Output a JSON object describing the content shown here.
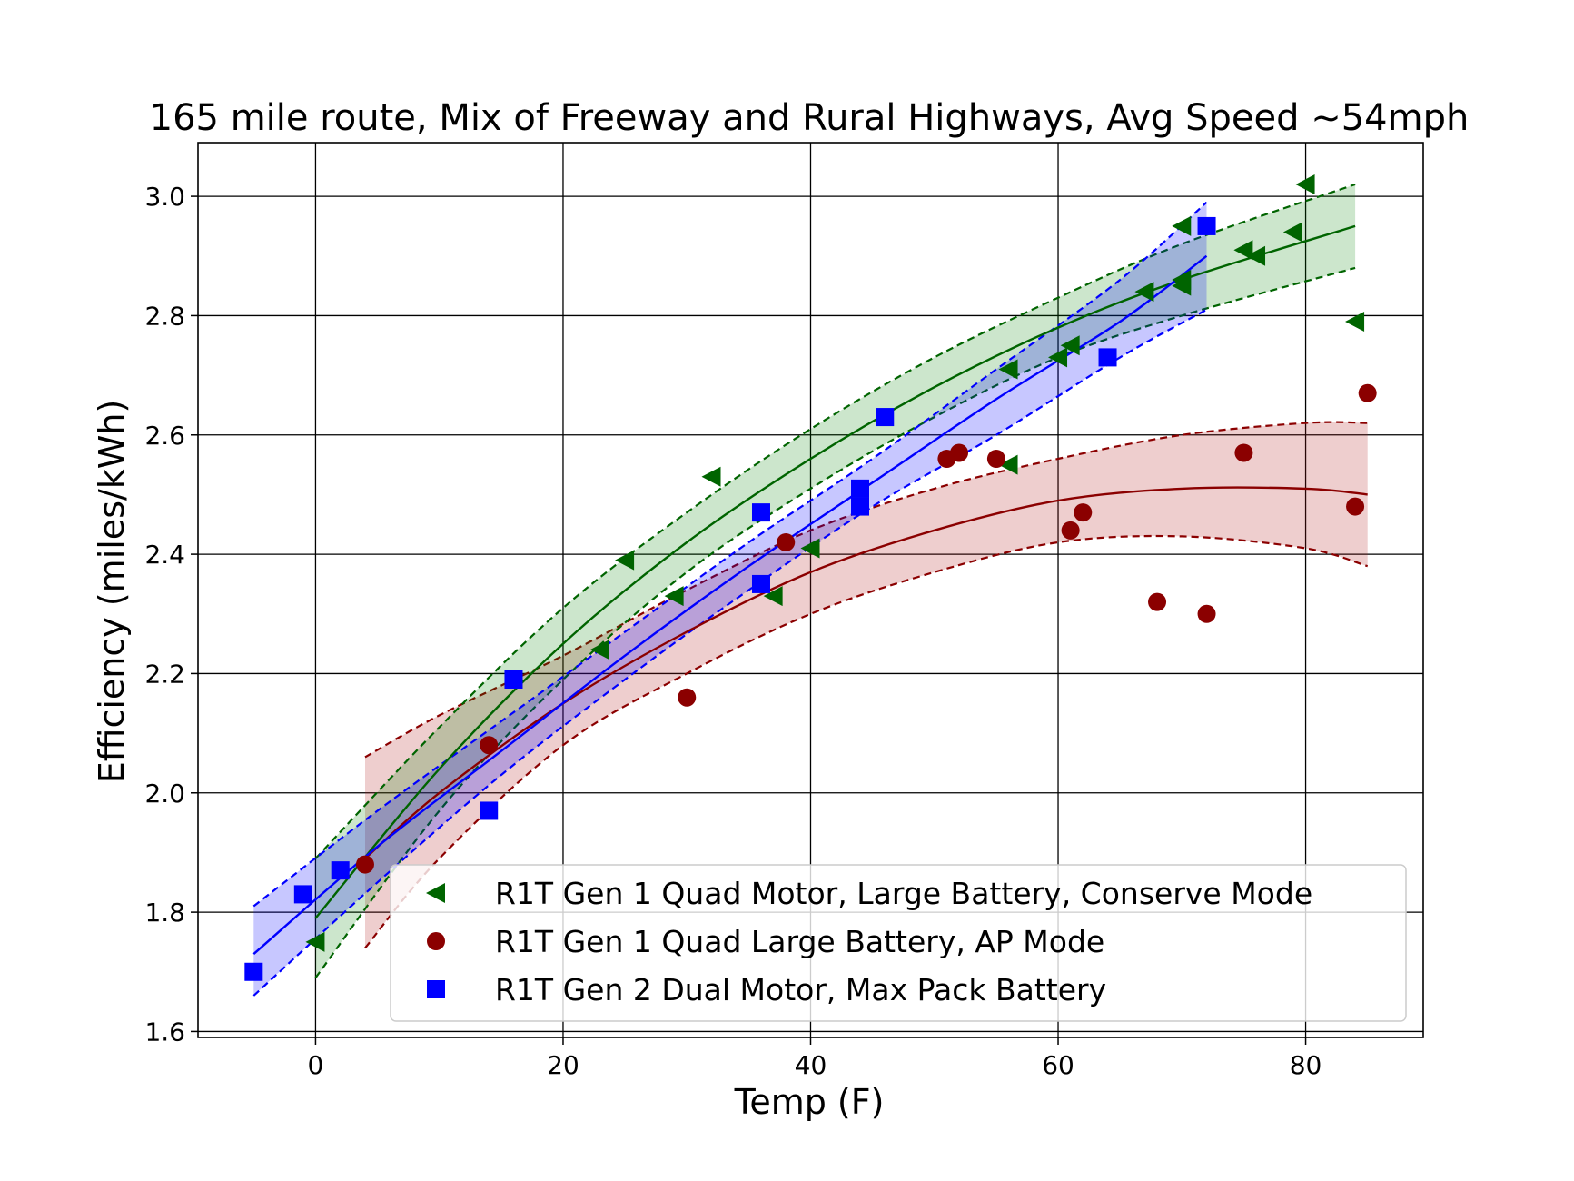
{
  "chart_data": {
    "type": "scatter",
    "title": "165 mile route, Mix of Freeway and Rural Highways, Avg Speed ~54mph",
    "xlabel": "Temp (F)",
    "ylabel": "Efficiency (miles/kWh)",
    "xlim": [
      -9.5,
      89.5
    ],
    "ylim": [
      1.59,
      3.09
    ],
    "xticks": [
      0,
      20,
      40,
      60,
      80
    ],
    "yticks": [
      1.6,
      1.8,
      2.0,
      2.2,
      2.4,
      2.6,
      2.8,
      3.0
    ],
    "xtick_labels": [
      "0",
      "20",
      "40",
      "60",
      "80"
    ],
    "ytick_labels": [
      "1.6",
      "1.8",
      "2.0",
      "2.2",
      "2.4",
      "2.6",
      "2.8",
      "3.0"
    ],
    "grid": true,
    "legend_position": "lower-right",
    "series": [
      {
        "name": "R1T Gen 1 Quad Motor, Large Battery, Conserve Mode",
        "marker": "triangle-left",
        "color": "#006400",
        "points": [
          [
            0,
            1.75
          ],
          [
            23,
            2.24
          ],
          [
            25,
            2.39
          ],
          [
            29,
            2.33
          ],
          [
            32,
            2.53
          ],
          [
            37,
            2.33
          ],
          [
            40,
            2.41
          ],
          [
            56,
            2.55
          ],
          [
            56,
            2.71
          ],
          [
            60,
            2.73
          ],
          [
            61,
            2.75
          ],
          [
            67,
            2.84
          ],
          [
            70,
            2.85
          ],
          [
            70,
            2.86
          ],
          [
            70,
            2.95
          ],
          [
            75,
            2.91
          ],
          [
            76,
            2.9
          ],
          [
            79,
            2.94
          ],
          [
            80,
            3.02
          ],
          [
            84,
            2.79
          ]
        ],
        "fit": {
          "x_range": [
            0,
            84
          ],
          "x": [
            0,
            10,
            20,
            30,
            40,
            50,
            60,
            70,
            84
          ],
          "y": [
            1.79,
            2.04,
            2.25,
            2.42,
            2.56,
            2.68,
            2.78,
            2.86,
            2.95
          ],
          "lower": [
            1.69,
            1.97,
            2.19,
            2.37,
            2.51,
            2.63,
            2.73,
            2.8,
            2.88
          ],
          "upper": [
            1.89,
            2.11,
            2.31,
            2.47,
            2.61,
            2.73,
            2.83,
            2.92,
            3.02
          ]
        }
      },
      {
        "name": "R1T Gen 1 Quad Large Battery, AP Mode",
        "marker": "circle",
        "color": "#8b0000",
        "points": [
          [
            4,
            1.88
          ],
          [
            14,
            2.08
          ],
          [
            30,
            2.16
          ],
          [
            38,
            2.42
          ],
          [
            51,
            2.56
          ],
          [
            52,
            2.57
          ],
          [
            55,
            2.56
          ],
          [
            61,
            2.44
          ],
          [
            62,
            2.47
          ],
          [
            68,
            2.32
          ],
          [
            72,
            2.3
          ],
          [
            75,
            2.57
          ],
          [
            84,
            2.48
          ],
          [
            85,
            2.67
          ]
        ],
        "fit": {
          "x_range": [
            4,
            85
          ],
          "x": [
            4,
            10,
            20,
            30,
            40,
            50,
            60,
            70,
            80,
            85
          ],
          "y": [
            1.89,
            2.0,
            2.15,
            2.27,
            2.37,
            2.44,
            2.49,
            2.51,
            2.51,
            2.5
          ],
          "lower": [
            1.74,
            1.89,
            2.08,
            2.2,
            2.3,
            2.37,
            2.42,
            2.43,
            2.41,
            2.38
          ],
          "upper": [
            2.06,
            2.13,
            2.23,
            2.34,
            2.44,
            2.51,
            2.56,
            2.6,
            2.62,
            2.62
          ]
        }
      },
      {
        "name": "R1T Gen 2 Dual Motor, Max Pack Battery",
        "marker": "square",
        "color": "#0000ff",
        "points": [
          [
            -5,
            1.7
          ],
          [
            -1,
            1.83
          ],
          [
            2,
            1.87
          ],
          [
            14,
            1.97
          ],
          [
            16,
            2.19
          ],
          [
            36,
            2.35
          ],
          [
            36,
            2.47
          ],
          [
            44,
            2.48
          ],
          [
            44,
            2.51
          ],
          [
            46,
            2.63
          ],
          [
            64,
            2.73
          ],
          [
            72,
            2.95
          ]
        ],
        "fit": {
          "x_range": [
            -5,
            72
          ],
          "x": [
            -5,
            5,
            15,
            25,
            35,
            45,
            55,
            65,
            72
          ],
          "y": [
            1.73,
            1.91,
            2.07,
            2.23,
            2.38,
            2.52,
            2.66,
            2.79,
            2.9
          ],
          "lower": [
            1.66,
            1.85,
            2.03,
            2.19,
            2.34,
            2.48,
            2.6,
            2.73,
            2.81
          ],
          "upper": [
            1.81,
            1.97,
            2.12,
            2.27,
            2.42,
            2.56,
            2.71,
            2.86,
            2.99
          ]
        }
      }
    ]
  }
}
